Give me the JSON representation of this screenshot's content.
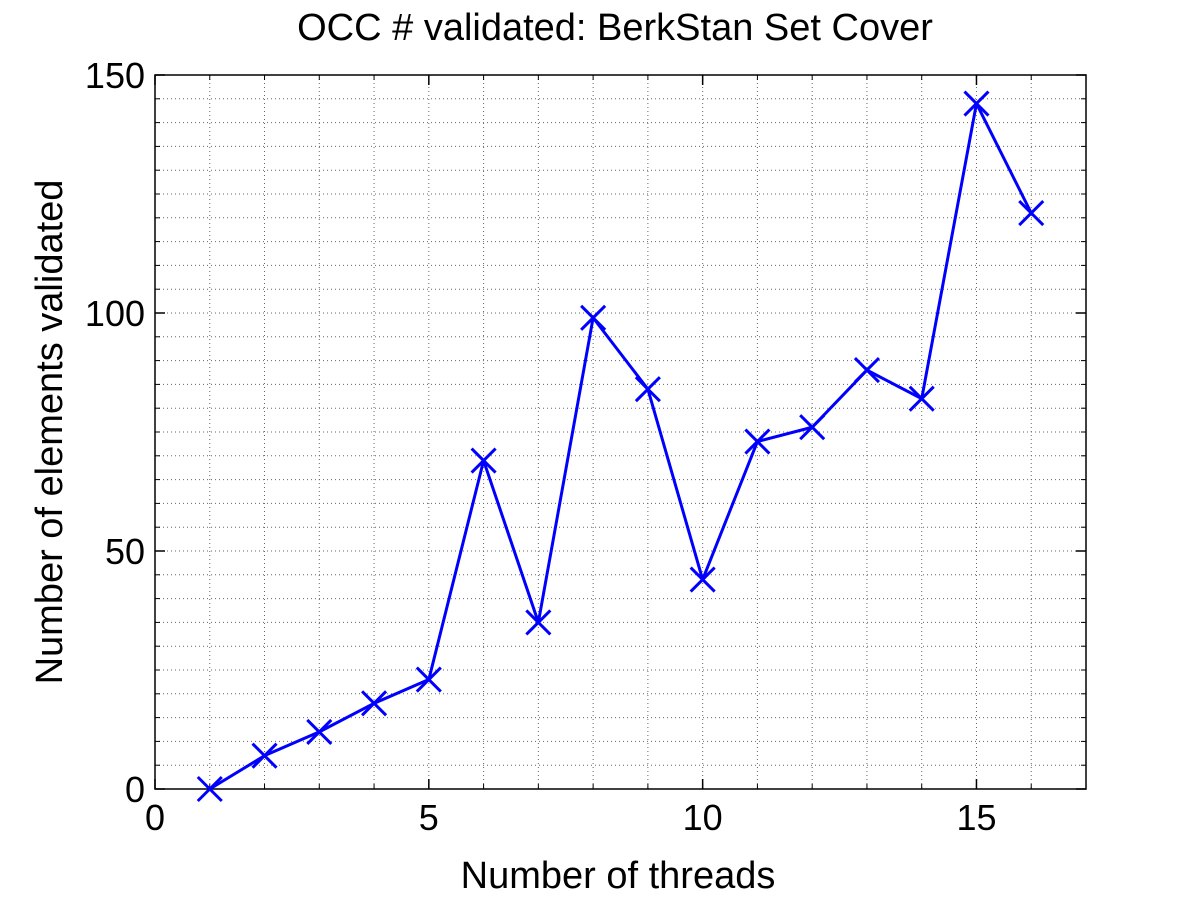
{
  "chart_data": {
    "type": "line",
    "title": "OCC # validated: BerkStan Set Cover",
    "xlabel": "Number of threads",
    "ylabel": "Number of elements validated",
    "xlim": [
      0,
      17
    ],
    "ylim": [
      0,
      150
    ],
    "xticks": [
      0,
      5,
      10,
      15
    ],
    "yticks": [
      0,
      50,
      100,
      150
    ],
    "xtick_labels": [
      "0",
      "5",
      "10",
      "15"
    ],
    "ytick_labels": [
      "0",
      "50",
      "100",
      "150"
    ],
    "grid": true,
    "minor_grid": true,
    "series": [
      {
        "color": "#0000ff",
        "marker": "x",
        "x": [
          1,
          2,
          3,
          4,
          5,
          6,
          7,
          8,
          9,
          10,
          11,
          12,
          13,
          14,
          15,
          16
        ],
        "y": [
          0,
          7,
          12,
          18,
          23,
          69,
          35,
          99,
          84,
          44,
          73,
          76,
          88,
          82,
          144,
          121
        ]
      }
    ]
  }
}
